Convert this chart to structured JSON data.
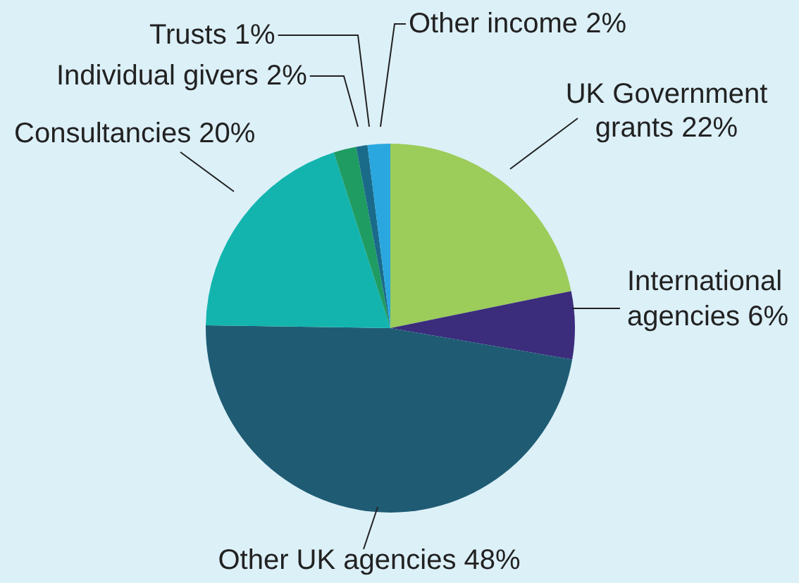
{
  "chart_data": {
    "type": "pie",
    "categories": [
      "UK Government grants",
      "International agencies",
      "Other UK agencies",
      "Consultancies",
      "Individual givers",
      "Trusts",
      "Other income"
    ],
    "values": [
      22,
      6,
      48,
      20,
      2,
      1,
      2
    ],
    "value_labels": [
      "22%",
      "6%",
      "48%",
      "20%",
      "2%",
      "1%",
      "2%"
    ],
    "colors": [
      "#9ccc5a",
      "#3b2c7c",
      "#1f5c74",
      "#14b4ae",
      "#1f9c62",
      "#1a6b8a",
      "#2aa7df"
    ],
    "legend": false
  }
}
